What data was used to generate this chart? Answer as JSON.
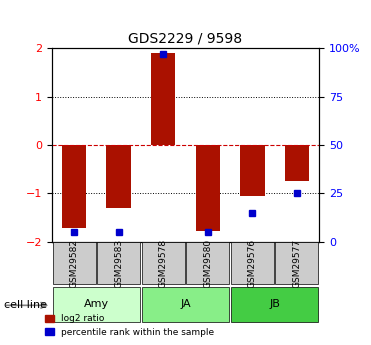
{
  "title": "GDS2229 / 9598",
  "samples": [
    "GSM29582",
    "GSM29583",
    "GSM29578",
    "GSM29580",
    "GSM29576",
    "GSM29577"
  ],
  "log2_ratios": [
    -1.72,
    -1.3,
    1.9,
    -1.78,
    -1.05,
    -0.75
  ],
  "percentile_ranks": [
    5.0,
    5.0,
    97.0,
    5.0,
    15.0,
    25.0
  ],
  "cell_lines_info": [
    {
      "label": "Amy",
      "start": 0,
      "end": 1,
      "color": "#ccffcc"
    },
    {
      "label": "JA",
      "start": 2,
      "end": 3,
      "color": "#88ee88"
    },
    {
      "label": "JB",
      "start": 4,
      "end": 5,
      "color": "#44cc44"
    }
  ],
  "bar_color": "#aa1100",
  "dot_color": "#0000cc",
  "ylim": [
    -2,
    2
  ],
  "yticks_left": [
    -2,
    -1,
    0,
    1,
    2
  ],
  "yticks_right": [
    0,
    25,
    50,
    75,
    100
  ],
  "hline_color_zero": "#cc0000",
  "hline_color_grid": "#000000",
  "bar_width": 0.55,
  "background_color": "#ffffff",
  "legend_log2_label": "log2 ratio",
  "legend_pct_label": "percentile rank within the sample",
  "cell_line_label": "cell line"
}
